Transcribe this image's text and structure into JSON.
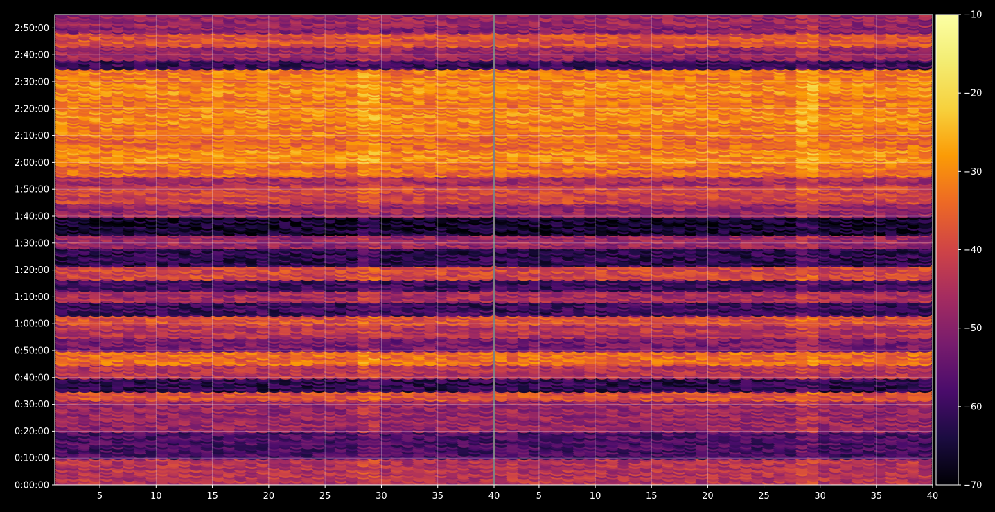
{
  "chart_data": {
    "type": "heatmap",
    "title": "",
    "xlabel": "",
    "ylabel": "",
    "panels": [
      {
        "name": "left",
        "xlim": [
          1,
          40
        ]
      },
      {
        "name": "right",
        "xlim": [
          40,
          79
        ]
      }
    ],
    "x_ticks": [
      "5",
      "10",
      "15",
      "20",
      "25",
      "30",
      "35",
      "40",
      "5",
      "10",
      "15",
      "20",
      "25",
      "30",
      "35",
      "40"
    ],
    "y_ticks": [
      "0:00:00",
      "0:10:00",
      "0:20:00",
      "0:30:00",
      "0:40:00",
      "0:50:00",
      "1:00:00",
      "1:10:00",
      "1:20:00",
      "1:30:00",
      "1:40:00",
      "1:50:00",
      "2:00:00",
      "2:10:00",
      "2:20:00",
      "2:30:00",
      "2:40:00",
      "2:50:00"
    ],
    "ylim_seconds": [
      0,
      10500
    ],
    "colorbar": {
      "colormap": "inferno",
      "range": [
        -70,
        -10
      ],
      "ticks": [
        "−10",
        "−20",
        "−30",
        "−40",
        "−50",
        "−60",
        "−70"
      ]
    },
    "grid": true,
    "band_levels": {
      "description_free": true,
      "rows_per_band": 1,
      "bands": [
        {
          "t0": 0,
          "t1": 600,
          "level": -44
        },
        {
          "t0": 600,
          "t1": 1200,
          "level": -58
        },
        {
          "t0": 1200,
          "t1": 1900,
          "level": -48
        },
        {
          "t0": 1900,
          "t1": 2100,
          "level": -38
        },
        {
          "t0": 2100,
          "t1": 2400,
          "level": -62
        },
        {
          "t0": 2400,
          "t1": 2700,
          "level": -44
        },
        {
          "t0": 2700,
          "t1": 3000,
          "level": -34
        },
        {
          "t0": 3000,
          "t1": 3300,
          "level": -52
        },
        {
          "t0": 3300,
          "t1": 3600,
          "level": -44
        },
        {
          "t0": 3600,
          "t1": 3800,
          "level": -38
        },
        {
          "t0": 3800,
          "t1": 4100,
          "level": -60
        },
        {
          "t0": 4100,
          "t1": 4350,
          "level": -46
        },
        {
          "t0": 4350,
          "t1": 4600,
          "level": -60
        },
        {
          "t0": 4600,
          "t1": 4900,
          "level": -40
        },
        {
          "t0": 4900,
          "t1": 5050,
          "level": -62
        },
        {
          "t0": 5050,
          "t1": 5300,
          "level": -62
        },
        {
          "t0": 5300,
          "t1": 5600,
          "level": -48
        },
        {
          "t0": 5600,
          "t1": 6000,
          "level": -66
        },
        {
          "t0": 6000,
          "t1": 6300,
          "level": -48
        },
        {
          "t0": 6300,
          "t1": 6700,
          "level": -40
        },
        {
          "t0": 6700,
          "t1": 6900,
          "level": -46
        },
        {
          "t0": 6900,
          "t1": 7200,
          "level": -34
        },
        {
          "t0": 7200,
          "t1": 7500,
          "level": -30
        },
        {
          "t0": 7500,
          "t1": 7800,
          "level": -34
        },
        {
          "t0": 7800,
          "t1": 8100,
          "level": -32
        },
        {
          "t0": 8100,
          "t1": 8400,
          "level": -30
        },
        {
          "t0": 8400,
          "t1": 8700,
          "level": -32
        },
        {
          "t0": 8700,
          "t1": 9000,
          "level": -30
        },
        {
          "t0": 9000,
          "t1": 9300,
          "level": -32
        },
        {
          "t0": 9300,
          "t1": 9500,
          "level": -60
        },
        {
          "t0": 9500,
          "t1": 9800,
          "level": -48
        },
        {
          "t0": 9800,
          "t1": 10100,
          "level": -38
        },
        {
          "t0": 10100,
          "t1": 10250,
          "level": -50
        },
        {
          "t0": 10250,
          "t1": 10500,
          "level": -48
        }
      ]
    }
  }
}
